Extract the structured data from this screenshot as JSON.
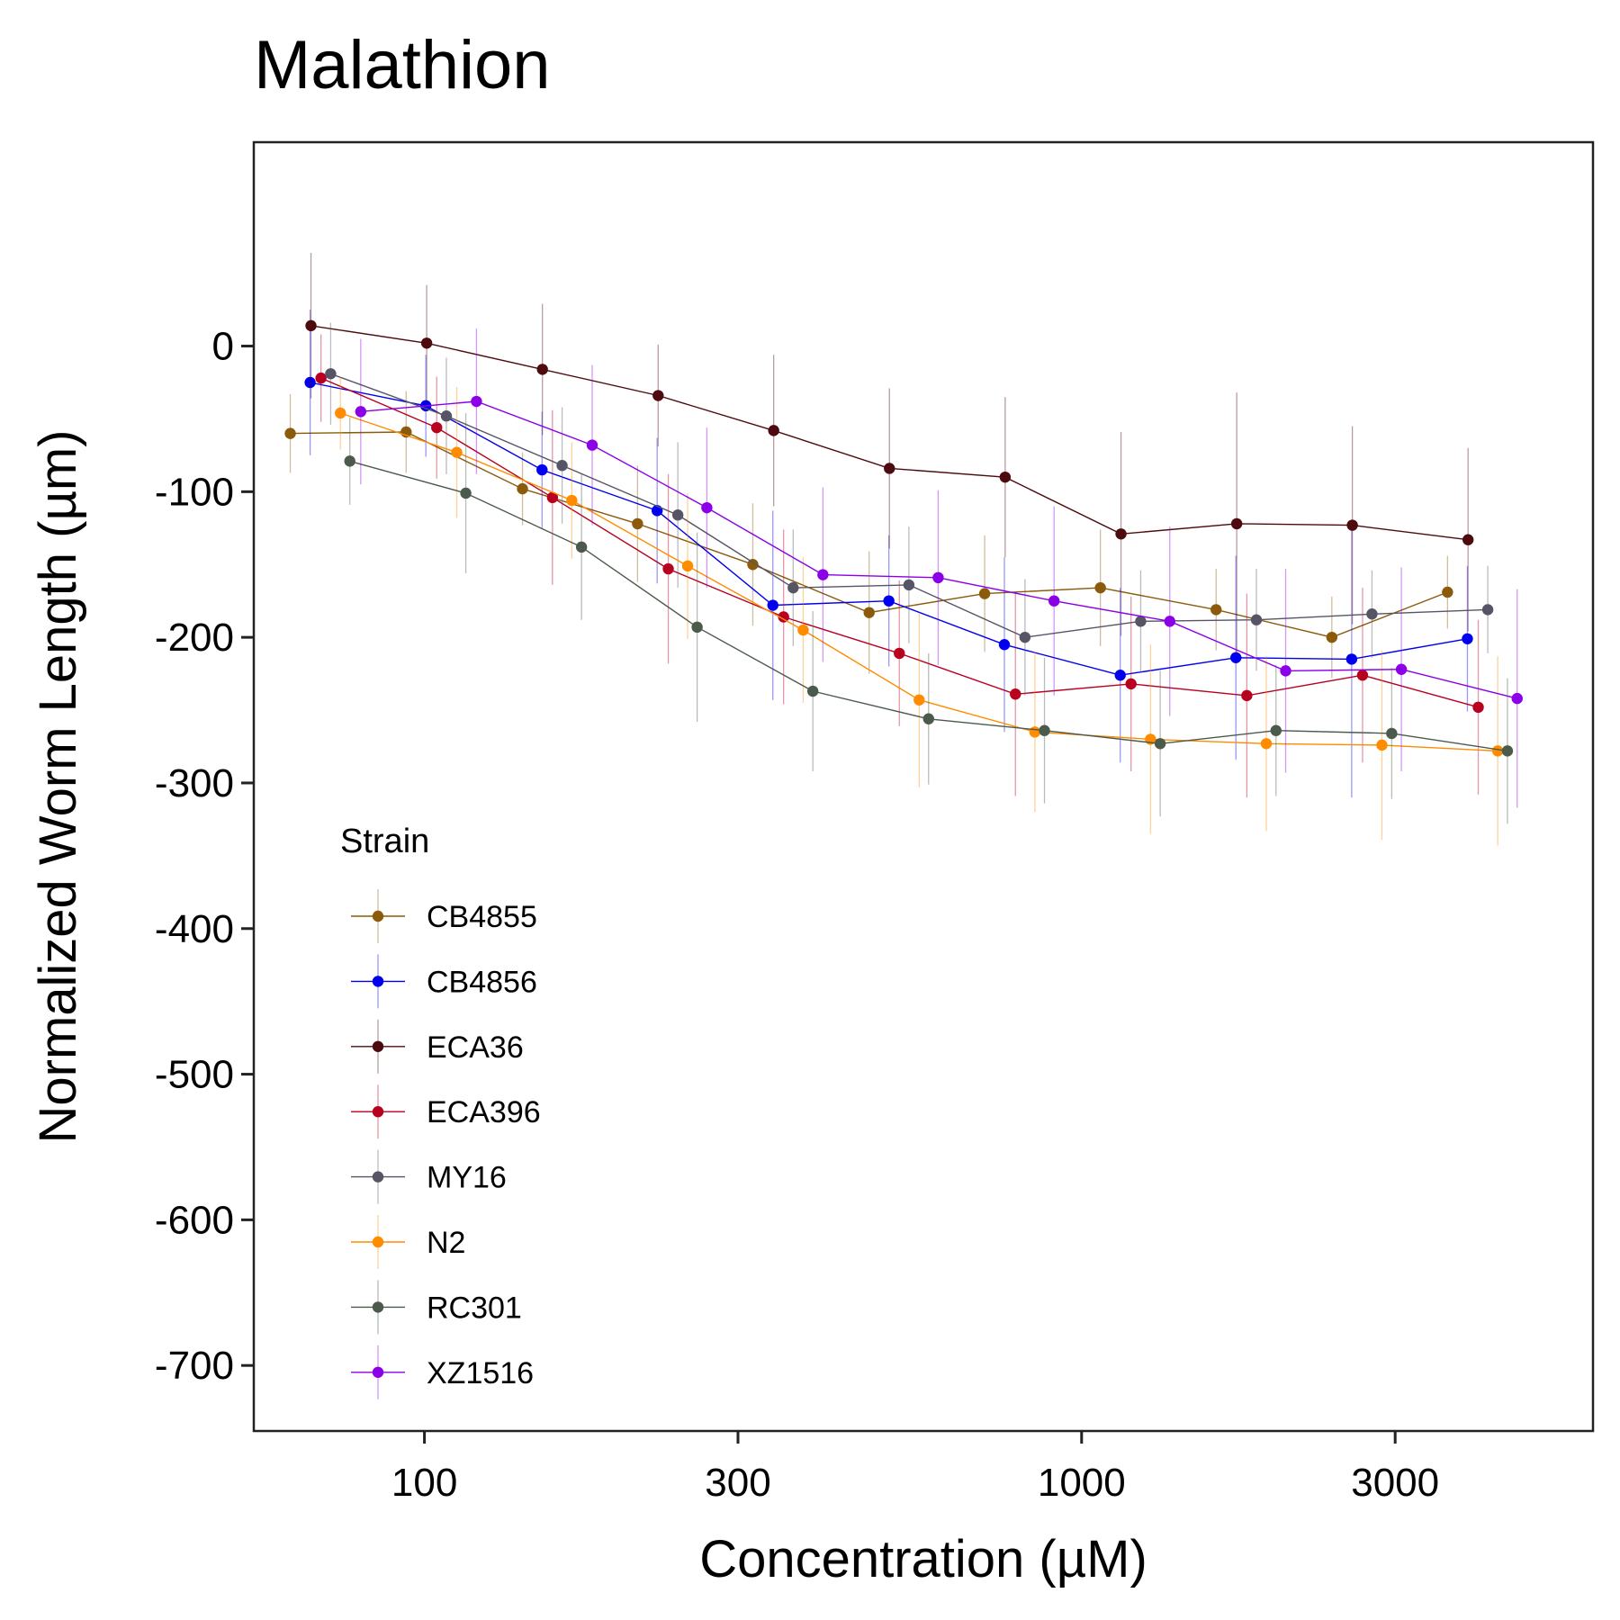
{
  "chart_data": {
    "type": "line",
    "title": "Malathion",
    "xlabel": "Concentration (µM)",
    "ylabel": "Normalized Worm Length (µm)",
    "x_scale": "log",
    "xlim": [
      55,
      6000
    ],
    "ylim": [
      -745,
      140
    ],
    "xticks": [
      100,
      300,
      1000,
      3000
    ],
    "xtick_labels": [
      "100",
      "300",
      "1000",
      "3000"
    ],
    "yticks": [
      0,
      -100,
      -200,
      -300,
      -400,
      -500,
      -600,
      -700
    ],
    "ytick_labels": [
      "0",
      "-100",
      "-200",
      "-300",
      "-400",
      "-500",
      "-600",
      "-700"
    ],
    "grid": false,
    "legend": {
      "title": "Strain",
      "position": "inside-bottom-left"
    },
    "series": [
      {
        "name": "CB4855",
        "color": "#8B5A0B",
        "x": [
          62.5,
          93.8,
          141,
          211,
          316,
          475,
          712,
          1068,
          1602,
          2403,
          3604
        ],
        "y": [
          -60,
          -59,
          -98,
          -122,
          -150,
          -183,
          -170,
          -166,
          -181,
          -200,
          -169
        ],
        "err": [
          27,
          28,
          25,
          40,
          42,
          42,
          40,
          40,
          28,
          28,
          25
        ]
      },
      {
        "name": "CB4856",
        "color": "#0000EE",
        "x": [
          67,
          100.5,
          151,
          226,
          339,
          509,
          763,
          1145,
          1717,
          2576,
          3864
        ],
        "y": [
          -25,
          -41,
          -85,
          -113,
          -178,
          -175,
          -205,
          -226,
          -214,
          -215,
          -201
        ],
        "err": [
          50,
          35,
          40,
          50,
          65,
          45,
          60,
          60,
          70,
          95,
          50
        ]
      },
      {
        "name": "ECA36",
        "color": "#4D0B0F",
        "x": [
          67.2,
          100.8,
          151.2,
          226.8,
          340,
          510,
          765,
          1148,
          1722,
          2582,
          3873
        ],
        "y": [
          14,
          2,
          -16,
          -34,
          -58,
          -84,
          -90,
          -129,
          -122,
          -123,
          -133
        ],
        "err": [
          50,
          40,
          45,
          35,
          52,
          55,
          55,
          70,
          90,
          68,
          63
        ]
      },
      {
        "name": "ECA396",
        "color": "#B8001F",
        "x": [
          69.6,
          104.4,
          156.6,
          235,
          352,
          528,
          793,
          1189,
          1784,
          2676,
          4014
        ],
        "y": [
          -22,
          -56,
          -104,
          -153,
          -186,
          -211,
          -239,
          -232,
          -240,
          -226,
          -248
        ],
        "err": [
          30,
          35,
          60,
          65,
          60,
          50,
          70,
          60,
          70,
          60,
          60
        ]
      },
      {
        "name": "MY16",
        "color": "#555566",
        "x": [
          72,
          108,
          162,
          243,
          364,
          546,
          820,
          1230,
          1845,
          2766,
          4150
        ],
        "y": [
          -19,
          -48,
          -82,
          -116,
          -166,
          -164,
          -200,
          -189,
          -188,
          -184,
          -181
        ],
        "err": [
          35,
          40,
          40,
          50,
          40,
          40,
          40,
          35,
          35,
          30,
          30
        ]
      },
      {
        "name": "N2",
        "color": "#FF8C00",
        "x": [
          74.5,
          112,
          167.6,
          251.5,
          377,
          566,
          849,
          1273,
          1910,
          2864,
          4297
        ],
        "y": [
          -46,
          -73,
          -106,
          -151,
          -195,
          -243,
          -265,
          -270,
          -273,
          -274,
          -278
        ],
        "err": [
          25,
          45,
          40,
          50,
          50,
          60,
          55,
          65,
          60,
          65,
          65
        ]
      },
      {
        "name": "RC301",
        "color": "#4B5A4B",
        "x": [
          77,
          115.6,
          173.4,
          260,
          390,
          585,
          878,
          1317,
          1976,
          2964,
          4446
        ],
        "y": [
          -79,
          -101,
          -138,
          -193,
          -237,
          -256,
          -264,
          -273,
          -264,
          -266,
          -278
        ],
        "err": [
          30,
          55,
          50,
          65,
          55,
          45,
          50,
          50,
          45,
          45,
          50
        ]
      },
      {
        "name": "XZ1516",
        "color": "#8B00E6",
        "x": [
          80,
          120,
          180,
          269,
          404,
          605,
          908,
          1362,
          2044,
          3066,
          4600
        ],
        "y": [
          -45,
          -38,
          -68,
          -111,
          -157,
          -159,
          -175,
          -189,
          -223,
          -222,
          -242
        ],
        "err": [
          50,
          50,
          55,
          55,
          60,
          60,
          65,
          65,
          70,
          70,
          75
        ]
      }
    ]
  }
}
